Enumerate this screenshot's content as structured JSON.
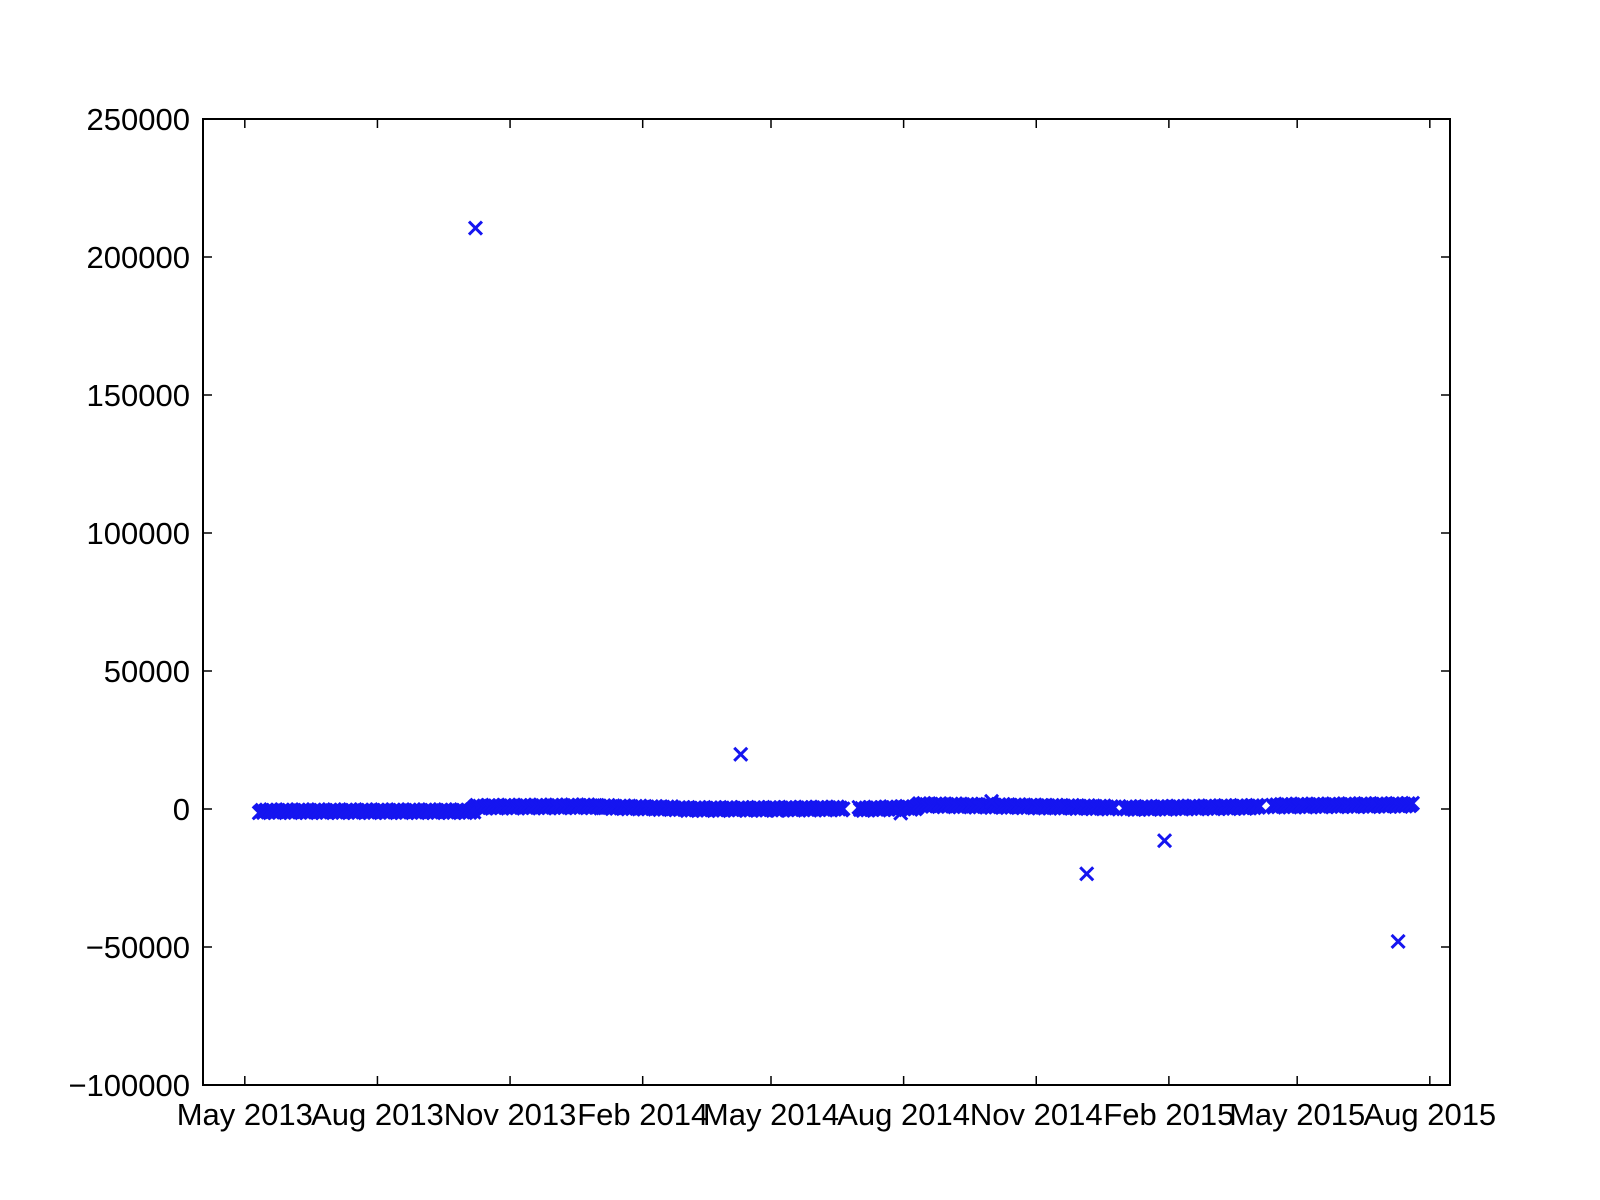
{
  "chart_data": {
    "type": "scatter",
    "title": "",
    "xlabel": "",
    "ylabel": "",
    "marker": "x",
    "color": "#1515f0",
    "grid": false,
    "legend": "none",
    "ylim": [
      -100000,
      250000
    ],
    "xlim": [
      "2013-04-02",
      "2015-08-15"
    ],
    "yticks": [
      -100000,
      -50000,
      0,
      50000,
      100000,
      150000,
      200000,
      250000
    ],
    "yticklabels": [
      "−100000",
      "−50000",
      "0",
      "50000",
      "100000",
      "150000",
      "200000",
      "250000"
    ],
    "xticks": [
      "2013-05-01",
      "2013-08-01",
      "2013-11-01",
      "2014-02-01",
      "2014-05-01",
      "2014-08-01",
      "2014-11-01",
      "2015-02-01",
      "2015-05-01",
      "2015-08-01"
    ],
    "xticklabels": [
      "May 2013",
      "Aug 2013",
      "Nov 2013",
      "Feb 2014",
      "May 2014",
      "Aug 2014",
      "Nov 2014",
      "Feb 2015",
      "May 2015",
      "Aug 2015"
    ],
    "dense_segments": [
      {
        "start": "2013-05-11",
        "end": "2013-10-07",
        "y_from": -800,
        "y_to": -800
      },
      {
        "start": "2013-10-07",
        "end": "2014-01-01",
        "y_from": 800,
        "y_to": 1000
      },
      {
        "start": "2014-01-01",
        "end": "2014-02-28",
        "y_from": 800,
        "y_to": 200
      },
      {
        "start": "2014-02-28",
        "end": "2014-04-05",
        "y_from": 0,
        "y_to": 0
      },
      {
        "start": "2014-04-05",
        "end": "2014-06-20",
        "y_from": 0,
        "y_to": 200
      },
      {
        "start": "2014-07-01",
        "end": "2014-08-10",
        "y_from": 0,
        "y_to": 500
      },
      {
        "start": "2014-08-10",
        "end": "2014-11-05",
        "y_from": 1500,
        "y_to": 900
      },
      {
        "start": "2014-11-05",
        "end": "2014-12-25",
        "y_from": 900,
        "y_to": 500
      },
      {
        "start": "2015-01-01",
        "end": "2015-04-05",
        "y_from": 300,
        "y_to": 800
      },
      {
        "start": "2015-04-14",
        "end": "2015-07-20",
        "y_from": 1200,
        "y_to": 1500
      }
    ],
    "points": [
      {
        "x": "2013-10-08",
        "y": 210500
      },
      {
        "x": "2014-04-10",
        "y": 19800
      },
      {
        "x": "2014-12-06",
        "y": -23500
      },
      {
        "x": "2015-01-29",
        "y": -11500
      },
      {
        "x": "2015-07-10",
        "y": -48000
      },
      {
        "x": "2014-10-01",
        "y": 2800
      },
      {
        "x": "2014-07-30",
        "y": -1500
      },
      {
        "x": "2014-05-05",
        "y": -500
      }
    ]
  }
}
